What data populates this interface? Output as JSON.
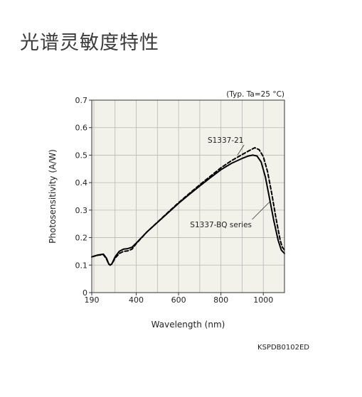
{
  "page": {
    "title": "光谱灵敏度特性",
    "doc_code": "KSPDB0102ED"
  },
  "chart_data": {
    "type": "line",
    "condition_note": "(Typ. Ta=25 °C)",
    "xlabel": "Wavelength (nm)",
    "ylabel": "Photosensitivity (A/W)",
    "xlim": [
      190,
      1100
    ],
    "ylim": [
      0,
      0.7
    ],
    "x_ticks": [
      190,
      400,
      600,
      800,
      1000
    ],
    "x_tick_labels": [
      "190",
      "400",
      "600",
      "800",
      "1000"
    ],
    "y_ticks": [
      0,
      0.1,
      0.2,
      0.3,
      0.4,
      0.5,
      0.6,
      0.7
    ],
    "y_tick_labels": [
      "0",
      "0.1",
      "0.2",
      "0.3",
      "0.4",
      "0.5",
      "0.6",
      "0.7"
    ],
    "x_grid": [
      200,
      300,
      400,
      500,
      600,
      700,
      800,
      900,
      1000,
      1100
    ],
    "y_grid": [
      0.1,
      0.2,
      0.3,
      0.4,
      0.5,
      0.6,
      0.7
    ],
    "grid": true,
    "background": "#f2f2ea",
    "series": [
      {
        "name": "S1337-BQ series",
        "style": "solid",
        "color": "#000000",
        "points": [
          [
            190,
            0.13
          ],
          [
            220,
            0.137
          ],
          [
            245,
            0.14
          ],
          [
            260,
            0.125
          ],
          [
            270,
            0.105
          ],
          [
            277,
            0.1
          ],
          [
            285,
            0.105
          ],
          [
            300,
            0.13
          ],
          [
            320,
            0.15
          ],
          [
            340,
            0.158
          ],
          [
            360,
            0.16
          ],
          [
            380,
            0.165
          ],
          [
            400,
            0.18
          ],
          [
            450,
            0.22
          ],
          [
            500,
            0.255
          ],
          [
            550,
            0.29
          ],
          [
            600,
            0.325
          ],
          [
            650,
            0.357
          ],
          [
            700,
            0.388
          ],
          [
            750,
            0.418
          ],
          [
            800,
            0.447
          ],
          [
            850,
            0.47
          ],
          [
            900,
            0.488
          ],
          [
            930,
            0.497
          ],
          [
            950,
            0.5
          ],
          [
            970,
            0.497
          ],
          [
            990,
            0.475
          ],
          [
            1010,
            0.42
          ],
          [
            1030,
            0.34
          ],
          [
            1050,
            0.26
          ],
          [
            1070,
            0.19
          ],
          [
            1085,
            0.155
          ],
          [
            1100,
            0.142
          ]
        ]
      },
      {
        "name": "S1337-21",
        "style": "dashed",
        "color": "#000000",
        "points": [
          [
            190,
            0.13
          ],
          [
            220,
            0.136
          ],
          [
            245,
            0.138
          ],
          [
            260,
            0.122
          ],
          [
            270,
            0.104
          ],
          [
            277,
            0.1
          ],
          [
            285,
            0.104
          ],
          [
            300,
            0.125
          ],
          [
            320,
            0.142
          ],
          [
            340,
            0.15
          ],
          [
            360,
            0.152
          ],
          [
            380,
            0.158
          ],
          [
            400,
            0.178
          ],
          [
            450,
            0.22
          ],
          [
            500,
            0.256
          ],
          [
            550,
            0.292
          ],
          [
            600,
            0.327
          ],
          [
            650,
            0.36
          ],
          [
            700,
            0.392
          ],
          [
            750,
            0.423
          ],
          [
            800,
            0.454
          ],
          [
            850,
            0.48
          ],
          [
            900,
            0.502
          ],
          [
            930,
            0.515
          ],
          [
            960,
            0.527
          ],
          [
            980,
            0.52
          ],
          [
            1000,
            0.495
          ],
          [
            1020,
            0.44
          ],
          [
            1040,
            0.36
          ],
          [
            1060,
            0.27
          ],
          [
            1080,
            0.19
          ],
          [
            1090,
            0.165
          ],
          [
            1100,
            0.155
          ]
        ]
      }
    ],
    "annotations": [
      {
        "text": "S1337-21",
        "label_at": [
          822,
          0.545
        ],
        "points_to": [
          878,
          0.5
        ]
      },
      {
        "text": "S1337-BQ series",
        "label_at": [
          800,
          0.238
        ],
        "points_to": [
          1030,
          0.33
        ]
      }
    ]
  }
}
